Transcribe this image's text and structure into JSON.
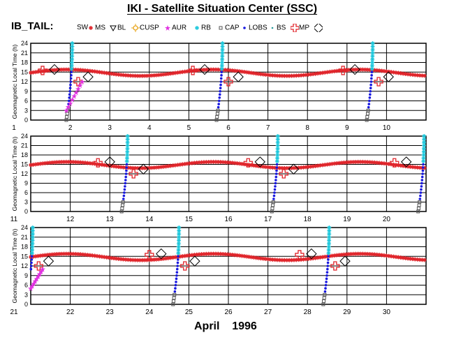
{
  "header": {
    "title": "IKI - Satellite Situation Center (SSC)",
    "subtitle": "IB_TAIL:"
  },
  "footer": {
    "period": "April    1996"
  },
  "legend": [
    {
      "label": "SW",
      "color": "#000000",
      "icon": "none"
    },
    {
      "label": "MS",
      "color": "#e0242a",
      "icon": "asterisk-icon"
    },
    {
      "label": "BL",
      "color": "#000000",
      "icon": "triangle-down-icon"
    },
    {
      "label": "CUSP",
      "color": "#e8a419",
      "icon": "sun-icon"
    },
    {
      "label": "AUR",
      "color": "#e030e0",
      "icon": "star-icon"
    },
    {
      "label": "RB",
      "color": "#1ec8dc",
      "icon": "asterisk-icon"
    },
    {
      "label": "CAP",
      "color": "#555555",
      "icon": "square-icon"
    },
    {
      "label": "LOBS",
      "color": "#1818e0",
      "icon": "dot-icon"
    },
    {
      "label": "BS",
      "color": "#2b9c9c",
      "icon": "small-dot-icon"
    },
    {
      "label": "MP",
      "color": "#e0242a",
      "icon": "plus-icon"
    },
    {
      "label": "",
      "color": "#000000",
      "icon": "diamond-icon"
    }
  ],
  "colors": {
    "ms": "#e0242a",
    "rb": "#1ec8dc",
    "lobs": "#1818e0",
    "aur": "#e030e0",
    "cusp": "#e8a419",
    "cap": "#555555",
    "bs": "#2b9c9c",
    "mp": "#e0242a",
    "frame": "#000000"
  },
  "chart_data": [
    {
      "type": "scatter",
      "ylabel": "Geomagnetic Local Time (h)",
      "xlim": [
        1,
        11
      ],
      "ylim": [
        0,
        24
      ],
      "x_ticks": [
        1,
        2,
        3,
        4,
        5,
        6,
        7,
        8,
        9,
        10
      ],
      "y_ticks": [
        0,
        3,
        6,
        9,
        12,
        15,
        18,
        21,
        24
      ],
      "passes": [
        {
          "start": 1.9,
          "direction": "up"
        },
        {
          "start": 5.7,
          "direction": "up"
        },
        {
          "start": 9.5,
          "direction": "up"
        }
      ],
      "aur_segment": {
        "x": [
          1.9,
          2.3
        ],
        "y": [
          3,
          12
        ]
      }
    },
    {
      "type": "scatter",
      "ylabel": "Geomagnetic Local Time (h)",
      "xlim": [
        11,
        21
      ],
      "ylim": [
        0,
        24
      ],
      "x_ticks": [
        11,
        12,
        13,
        14,
        15,
        16,
        17,
        18,
        19,
        20
      ],
      "y_ticks": [
        0,
        3,
        6,
        9,
        12,
        15,
        18,
        21,
        24
      ],
      "passes": [
        {
          "start": 13.3,
          "direction": "up"
        },
        {
          "start": 17.1,
          "direction": "up"
        },
        {
          "start": 20.8,
          "direction": "up"
        }
      ]
    },
    {
      "type": "scatter",
      "ylabel": "Geomagnetic Local Time (h)",
      "xlim": [
        21,
        31
      ],
      "ylim": [
        0,
        24
      ],
      "x_ticks": [
        21,
        22,
        23,
        24,
        25,
        26,
        27,
        28,
        29,
        30
      ],
      "y_ticks": [
        0,
        3,
        6,
        9,
        12,
        15,
        18,
        21,
        24
      ],
      "passes": [
        {
          "start": 20.9,
          "direction": "up"
        },
        {
          "start": 24.6,
          "direction": "up"
        },
        {
          "start": 28.4,
          "direction": "up"
        }
      ],
      "aur_segment": {
        "x": [
          21.0,
          21.3
        ],
        "y": [
          5,
          11
        ]
      }
    }
  ]
}
